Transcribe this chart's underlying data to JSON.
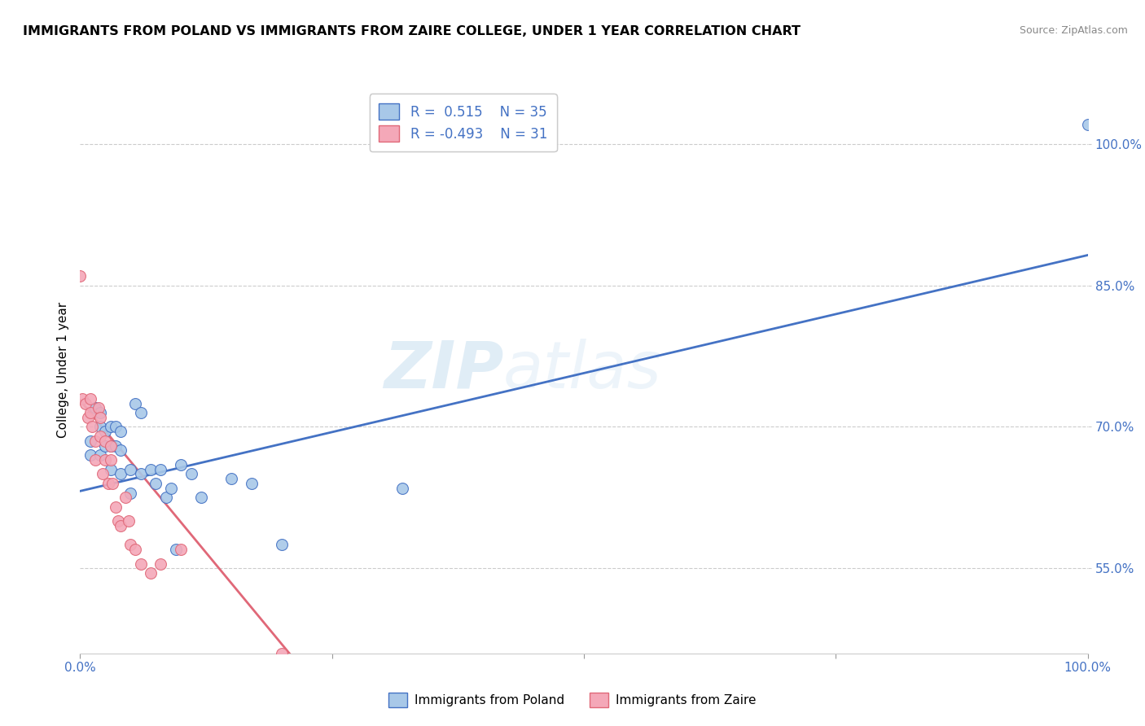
{
  "title": "IMMIGRANTS FROM POLAND VS IMMIGRANTS FROM ZAIRE COLLEGE, UNDER 1 YEAR CORRELATION CHART",
  "source": "Source: ZipAtlas.com",
  "ylabel": "College, Under 1 year",
  "legend_labels": [
    "Immigrants from Poland",
    "Immigrants from Zaire"
  ],
  "r_poland": 0.515,
  "n_poland": 35,
  "r_zaire": -0.493,
  "n_zaire": 31,
  "xmin": 0.0,
  "xmax": 1.0,
  "ymin": 0.46,
  "ymax": 1.06,
  "yticks": [
    0.55,
    0.7,
    0.85,
    1.0
  ],
  "ytick_labels": [
    "55.0%",
    "70.0%",
    "85.0%",
    "100.0%"
  ],
  "color_poland": "#a8c8e8",
  "color_zaire": "#f4a8b8",
  "line_poland": "#4472c4",
  "line_zaire": "#e06878",
  "watermark_zip": "ZIP",
  "watermark_atlas": "atlas",
  "poland_x": [
    0.01,
    0.01,
    0.015,
    0.02,
    0.02,
    0.02,
    0.025,
    0.025,
    0.03,
    0.03,
    0.03,
    0.035,
    0.035,
    0.04,
    0.04,
    0.04,
    0.05,
    0.05,
    0.055,
    0.06,
    0.06,
    0.07,
    0.075,
    0.08,
    0.085,
    0.09,
    0.095,
    0.1,
    0.11,
    0.12,
    0.15,
    0.17,
    0.2,
    0.32,
    1.0
  ],
  "poland_y": [
    0.685,
    0.67,
    0.72,
    0.715,
    0.7,
    0.67,
    0.695,
    0.68,
    0.7,
    0.68,
    0.655,
    0.7,
    0.68,
    0.695,
    0.675,
    0.65,
    0.655,
    0.63,
    0.725,
    0.715,
    0.65,
    0.655,
    0.64,
    0.655,
    0.625,
    0.635,
    0.57,
    0.66,
    0.65,
    0.625,
    0.645,
    0.64,
    0.575,
    0.635,
    1.02
  ],
  "zaire_x": [
    0.0,
    0.002,
    0.005,
    0.008,
    0.01,
    0.01,
    0.012,
    0.015,
    0.015,
    0.018,
    0.02,
    0.02,
    0.022,
    0.025,
    0.025,
    0.028,
    0.03,
    0.03,
    0.032,
    0.035,
    0.038,
    0.04,
    0.045,
    0.048,
    0.05,
    0.055,
    0.06,
    0.07,
    0.08,
    0.1,
    0.2
  ],
  "zaire_y": [
    0.86,
    0.73,
    0.725,
    0.71,
    0.73,
    0.715,
    0.7,
    0.685,
    0.665,
    0.72,
    0.71,
    0.69,
    0.65,
    0.685,
    0.665,
    0.64,
    0.68,
    0.665,
    0.64,
    0.615,
    0.6,
    0.595,
    0.625,
    0.6,
    0.575,
    0.57,
    0.555,
    0.545,
    0.555,
    0.57,
    0.46
  ],
  "line_poland_x0": 0.0,
  "line_poland_x1": 1.0,
  "line_poland_y0": 0.632,
  "line_poland_y1": 0.882,
  "line_zaire_x0": 0.0,
  "line_zaire_x1": 0.21,
  "line_zaire_y0": 0.728,
  "line_zaire_y1": 0.457
}
